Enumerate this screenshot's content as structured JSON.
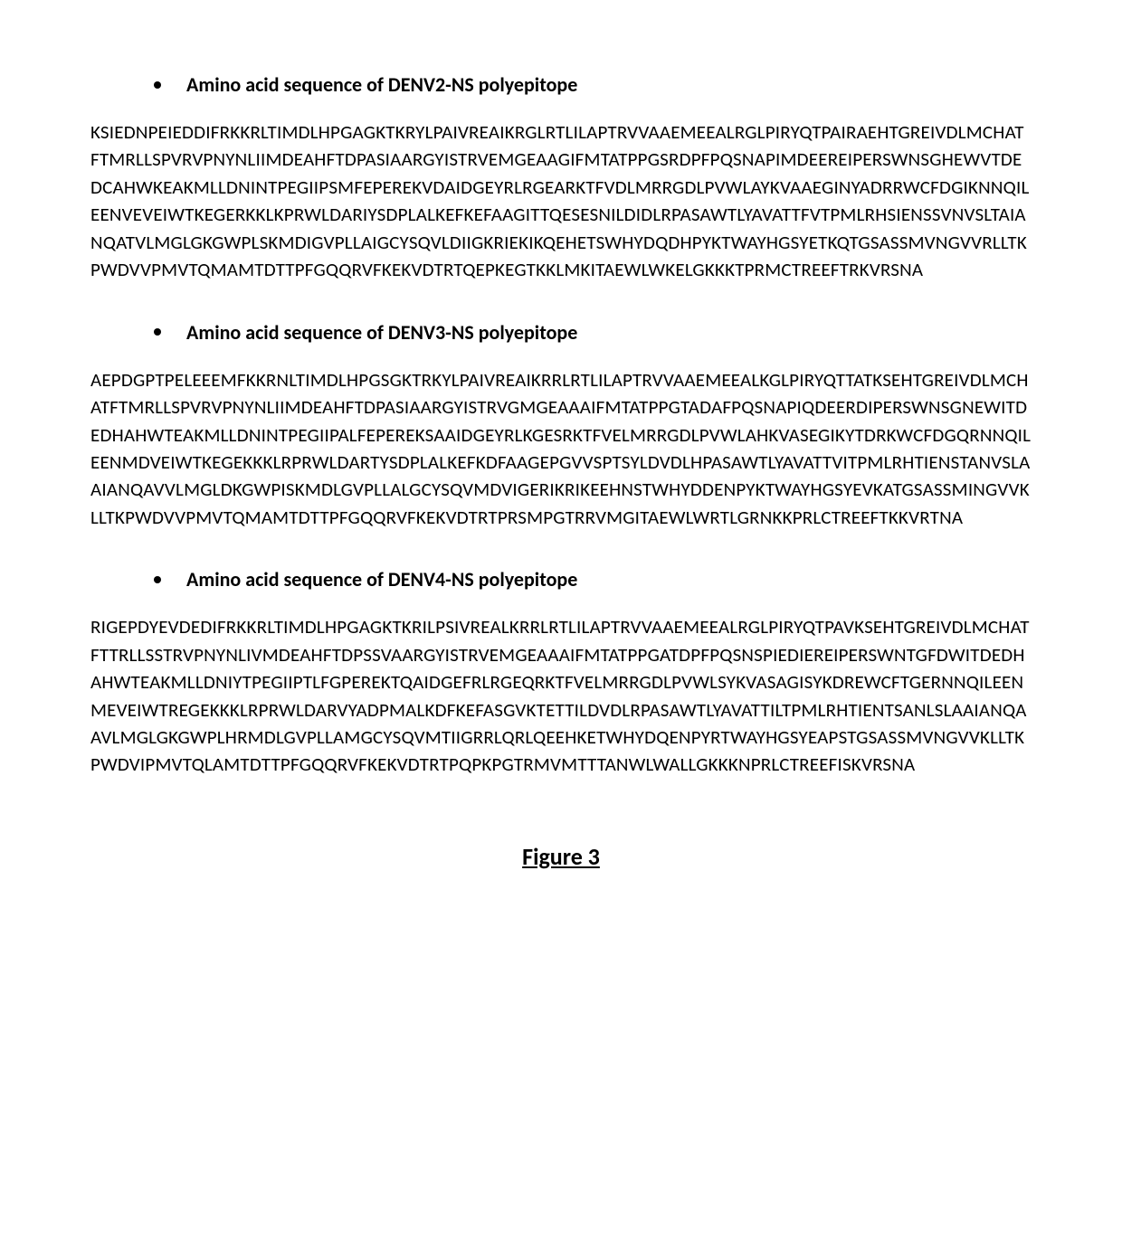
{
  "sections": [
    {
      "heading": "Amino acid sequence of DENV2-NS polyepitope",
      "sequence": "KSIEDNPEIEDDIFRKKRLTIMDLHPGAGKTKRYLPAIVREAIKRGLRTLILAPTRVVAAEMEEALRGLPIRYQTPAIRAEHTGREIVDLMCHATFTMRLLSPVRVPNYNLIIMDEAHFTDPASIAARGYISTRVEMGEAAGIFMTATPPGSRDPFPQSNAPIMDEEREIPERSWNSGHEWVTDEDCAHWKEAKMLLDNINTPEGIIPSMFEPEREKVDAIDGEYRLRGEARKTFVDLMRRGDLPVWLAYKVAAEGINYADRRWCFDGIKNNQILEENVEVEIWTKEGERKKLKPRWLDARIYSDPLALKEFKEFAAGITTQESESNILDIDLRPASAWTLYAVATTFVTPMLRHSIENSSVNVSLTAIANQATVLMGLGKGWPLSKMDIGVPLLAIGCYSQVLDIIGKRIEKIKQEHETSWHYDQDHPYKTWAYHGSYETKQTGSASSMVNGVVRLLTKPWDVVPMVTQMAMTDTTPFGQQRVFKEKVDTRTQEPKEGTKKLMKITAEWLWKELGKKKTPRMCTREEFTRKVRSNA"
    },
    {
      "heading": "Amino acid sequence of DENV3-NS polyepitope",
      "sequence": "AEPDGPTPELEEEMFKKRNLTIMDLHPGSGKTRKYLPAIVREAIKRRLRTLILAPTRVVAAEMEEALKGLPIRYQTTATKSEHTGREIVDLMCHATFTMRLLSPVRVPNYNLIIMDEAHFTDPASIAARGYISTRVGMGEAAAIFMTATPPGTADAFPQSNAPIQDEERDIPERSWNSGNEWITDEDHAHWTEAKMLLDNINTPEGIIPALFEPEREKSAAIDGEYRLKGESRKTFVELMRRGDLPVWLAHKVASEGIKYTDRKWCFDGQRNNQILEENMDVEIWTKEGEKKKLRPRWLDARTYSDPLALKEFKDFAAGEPGVVSPTSYLDVDLHPASAWTLYAVATTVITPMLRHTIENSTANVSLAAIANQAVVLMGLDKGWPISKMDLGVPLLALGCYSQVMDVIGERIKRIKEEHNSTWHYDDENPYKTWAYHGSYEVKATGSASSMINGVVKLLTKPWDVVPMVTQMAMTDTTPFGQQRVFKEKVDTRTPRSMPGTRRVMGITAEWLWRTLGRNKKPRLCTREEFTKKVRTNA"
    },
    {
      "heading": "Amino acid sequence of DENV4-NS polyepitope",
      "sequence": "RIGEPDYEVDEDIFRKKRLTIMDLHPGAGKTKRILPSIVREALKRRLRTLILAPTRVVAAEMEEALRGLPIRYQTPAVKSEHTGREIVDLMCHATFTTRLLSSTRVPNYNLIVMDEAHFTDPSSVAARGYISTRVEMGEAAAIFMTATPPGATDPFPQSNSPIEDIEREIPERSWNTGFDWITDEDHAHWTEAKMLLDNIYTPEGIIPTLFGPEREKTQAIDGEFRLRGEQRKTFVELMRRGDLPVWLSYKVASAGISYKDREWCFTGERNNQILEENMEVEIWTREGEKKKLRPRWLDARVYADPMALKDFKEFASGVKTETTILDVDLRPASAWTLYAVATTILTPMLRHTIENTSANLSLAAIANQAAVLMGLGKGWPLHRMDLGVPLLAMGCYSQVMTIIGRRLQRLQEEHKETWHYDQENPYRTWAYHGSYEAPSTGSASSMVNGVVKLLTKPWDVIPMVTQLAMTDTTPFGQQRVFKEKVDTRTPQPKPGTRMVMTTTANWLWALLGKKKNPRLCTREEFISKVRSNA"
    }
  ],
  "figure_label": "Figure 3",
  "styling": {
    "background_color": "#ffffff",
    "text_color": "#000000",
    "heading_fontsize": 22,
    "sequence_fontsize": 21,
    "figure_label_fontsize": 26,
    "font_family": "Calibri, Arial, sans-serif",
    "line_height": 1.45
  }
}
